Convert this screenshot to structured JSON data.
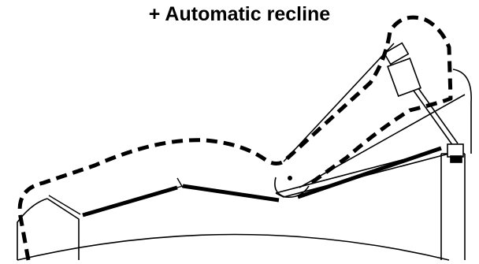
{
  "title": "+ Automatic recline",
  "icons": {
    "recliner": "recliner-chair-diagram-icon",
    "actuator": "linear-actuator-icon"
  },
  "colors": {
    "line": "#000000",
    "background": "#ffffff"
  }
}
